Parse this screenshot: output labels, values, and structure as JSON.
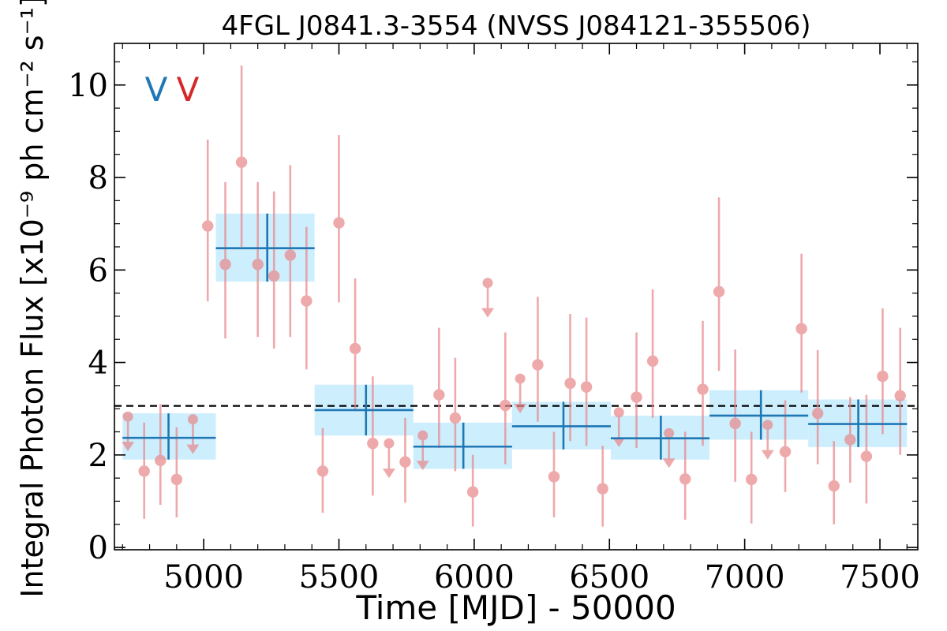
{
  "chart_data": {
    "type": "scatter",
    "title": "4FGL J0841.3-3554 (NVSS J084121-355506)",
    "xlabel": "Time [MJD] - 50000",
    "ylabel": "Integral Photon Flux [x10⁻⁹ ph cm⁻² s⁻¹]",
    "xlim": [
      4670,
      7640
    ],
    "ylim": [
      -0.05,
      10.9
    ],
    "xticks": [
      5000,
      5500,
      6000,
      6500,
      7000,
      7500
    ],
    "yticks": [
      0,
      2,
      4,
      6,
      8,
      10
    ],
    "grid": false,
    "mean_flux": 3.06,
    "legend": {
      "entries": [
        {
          "label": "V",
          "color": "#1f77b4"
        },
        {
          "label": "V",
          "color": "#d62728"
        }
      ],
      "placement": "top-left"
    },
    "colors": {
      "binned": "#1f77b4",
      "binned_band": "#cdeefc",
      "short": "#e8888c",
      "mean_line": "#000000"
    },
    "binned_series": [
      {
        "x_start": 4700,
        "x_end": 5045,
        "x": 4870,
        "y": 2.37,
        "y_low": 1.9,
        "y_high": 2.9
      },
      {
        "x_start": 5045,
        "x_end": 5410,
        "x": 5235,
        "y": 6.47,
        "y_low": 5.75,
        "y_high": 7.22
      },
      {
        "x_start": 5410,
        "x_end": 5775,
        "x": 5600,
        "y": 2.97,
        "y_low": 2.42,
        "y_high": 3.52
      },
      {
        "x_start": 5775,
        "x_end": 6140,
        "x": 5960,
        "y": 2.18,
        "y_low": 1.7,
        "y_high": 2.7
      },
      {
        "x_start": 6140,
        "x_end": 6505,
        "x": 6330,
        "y": 2.62,
        "y_low": 2.12,
        "y_high": 3.15
      },
      {
        "x_start": 6505,
        "x_end": 6870,
        "x": 6690,
        "y": 2.36,
        "y_low": 1.9,
        "y_high": 2.85
      },
      {
        "x_start": 6870,
        "x_end": 7235,
        "x": 7060,
        "y": 2.85,
        "y_low": 2.33,
        "y_high": 3.4
      },
      {
        "x_start": 7235,
        "x_end": 7600,
        "x": 7420,
        "y": 2.67,
        "y_low": 2.17,
        "y_high": 3.2
      }
    ],
    "short_series": [
      {
        "x": 4720,
        "y": 2.83,
        "upper_limit": true
      },
      {
        "x": 4780,
        "y": 1.65,
        "y_low": 0.62,
        "y_high": 2.7
      },
      {
        "x": 4840,
        "y": 1.88,
        "y_low": 0.92,
        "y_high": 3.1
      },
      {
        "x": 4900,
        "y": 1.47,
        "y_low": 0.65,
        "y_high": 2.6
      },
      {
        "x": 4960,
        "y": 2.77,
        "upper_limit": true
      },
      {
        "x": 5015,
        "y": 6.95,
        "y_low": 5.32,
        "y_high": 8.82
      },
      {
        "x": 5080,
        "y": 6.12,
        "y_low": 4.52,
        "y_high": 7.9
      },
      {
        "x": 5140,
        "y": 8.33,
        "y_low": 6.5,
        "y_high": 10.42
      },
      {
        "x": 5200,
        "y": 6.12,
        "y_low": 4.55,
        "y_high": 7.9
      },
      {
        "x": 5260,
        "y": 5.87,
        "y_low": 4.3,
        "y_high": 7.7
      },
      {
        "x": 5320,
        "y": 6.32,
        "y_low": 4.55,
        "y_high": 8.27
      },
      {
        "x": 5380,
        "y": 5.33,
        "y_low": 3.85,
        "y_high": 6.93
      },
      {
        "x": 5440,
        "y": 1.65,
        "y_low": 0.75,
        "y_high": 2.58
      },
      {
        "x": 5500,
        "y": 7.02,
        "y_low": 5.3,
        "y_high": 8.92
      },
      {
        "x": 5560,
        "y": 4.3,
        "y_low": 2.95,
        "y_high": 5.82
      },
      {
        "x": 5625,
        "y": 2.25,
        "y_low": 1.12,
        "y_high": 3.7
      },
      {
        "x": 5685,
        "y": 2.25,
        "upper_limit": true
      },
      {
        "x": 5745,
        "y": 1.85,
        "y_low": 0.97,
        "y_high": 2.8
      },
      {
        "x": 5810,
        "y": 2.42,
        "upper_limit": true
      },
      {
        "x": 5870,
        "y": 3.3,
        "y_low": 2.15,
        "y_high": 4.75
      },
      {
        "x": 5930,
        "y": 2.8,
        "y_low": 1.65,
        "y_high": 4.1
      },
      {
        "x": 5995,
        "y": 1.2,
        "y_low": 0.45,
        "y_high": 2.0
      },
      {
        "x": 6050,
        "y": 5.72,
        "upper_limit": true
      },
      {
        "x": 6115,
        "y": 3.07,
        "y_low": 1.8,
        "y_high": 4.65
      },
      {
        "x": 6170,
        "y": 3.65,
        "upper_limit": true
      },
      {
        "x": 6235,
        "y": 3.95,
        "y_low": 2.72,
        "y_high": 5.42
      },
      {
        "x": 6295,
        "y": 1.53,
        "y_low": 0.65,
        "y_high": 2.5
      },
      {
        "x": 6355,
        "y": 3.55,
        "y_low": 2.3,
        "y_high": 5.05
      },
      {
        "x": 6415,
        "y": 3.47,
        "y_low": 2.2,
        "y_high": 4.97
      },
      {
        "x": 6475,
        "y": 1.27,
        "y_low": 0.45,
        "y_high": 2.2
      },
      {
        "x": 6535,
        "y": 2.92,
        "upper_limit": true
      },
      {
        "x": 6600,
        "y": 3.25,
        "y_low": 2.15,
        "y_high": 4.65
      },
      {
        "x": 6660,
        "y": 4.03,
        "y_low": 2.8,
        "y_high": 5.58
      },
      {
        "x": 6720,
        "y": 2.47,
        "upper_limit": true
      },
      {
        "x": 6780,
        "y": 1.48,
        "y_low": 0.6,
        "y_high": 2.5
      },
      {
        "x": 6845,
        "y": 3.42,
        "y_low": 2.2,
        "y_high": 4.9
      },
      {
        "x": 6905,
        "y": 5.53,
        "y_low": 3.82,
        "y_high": 7.57
      },
      {
        "x": 6965,
        "y": 2.68,
        "y_low": 1.42,
        "y_high": 4.28
      },
      {
        "x": 7025,
        "y": 1.47,
        "y_low": 0.52,
        "y_high": 2.5
      },
      {
        "x": 7085,
        "y": 2.65,
        "upper_limit": true
      },
      {
        "x": 7150,
        "y": 2.07,
        "y_low": 1.2,
        "y_high": 3.18
      },
      {
        "x": 7210,
        "y": 4.73,
        "y_low": 3.35,
        "y_high": 6.35
      },
      {
        "x": 7270,
        "y": 2.9,
        "y_low": 1.8,
        "y_high": 4.27
      },
      {
        "x": 7330,
        "y": 1.33,
        "y_low": 0.5,
        "y_high": 2.3
      },
      {
        "x": 7390,
        "y": 2.33,
        "y_low": 1.4,
        "y_high": 3.25
      },
      {
        "x": 7450,
        "y": 1.97,
        "y_low": 0.95,
        "y_high": 3.3
      },
      {
        "x": 7510,
        "y": 3.7,
        "y_low": 2.45,
        "y_high": 5.17
      },
      {
        "x": 7575,
        "y": 3.28,
        "y_low": 2.0,
        "y_high": 4.75
      }
    ]
  }
}
